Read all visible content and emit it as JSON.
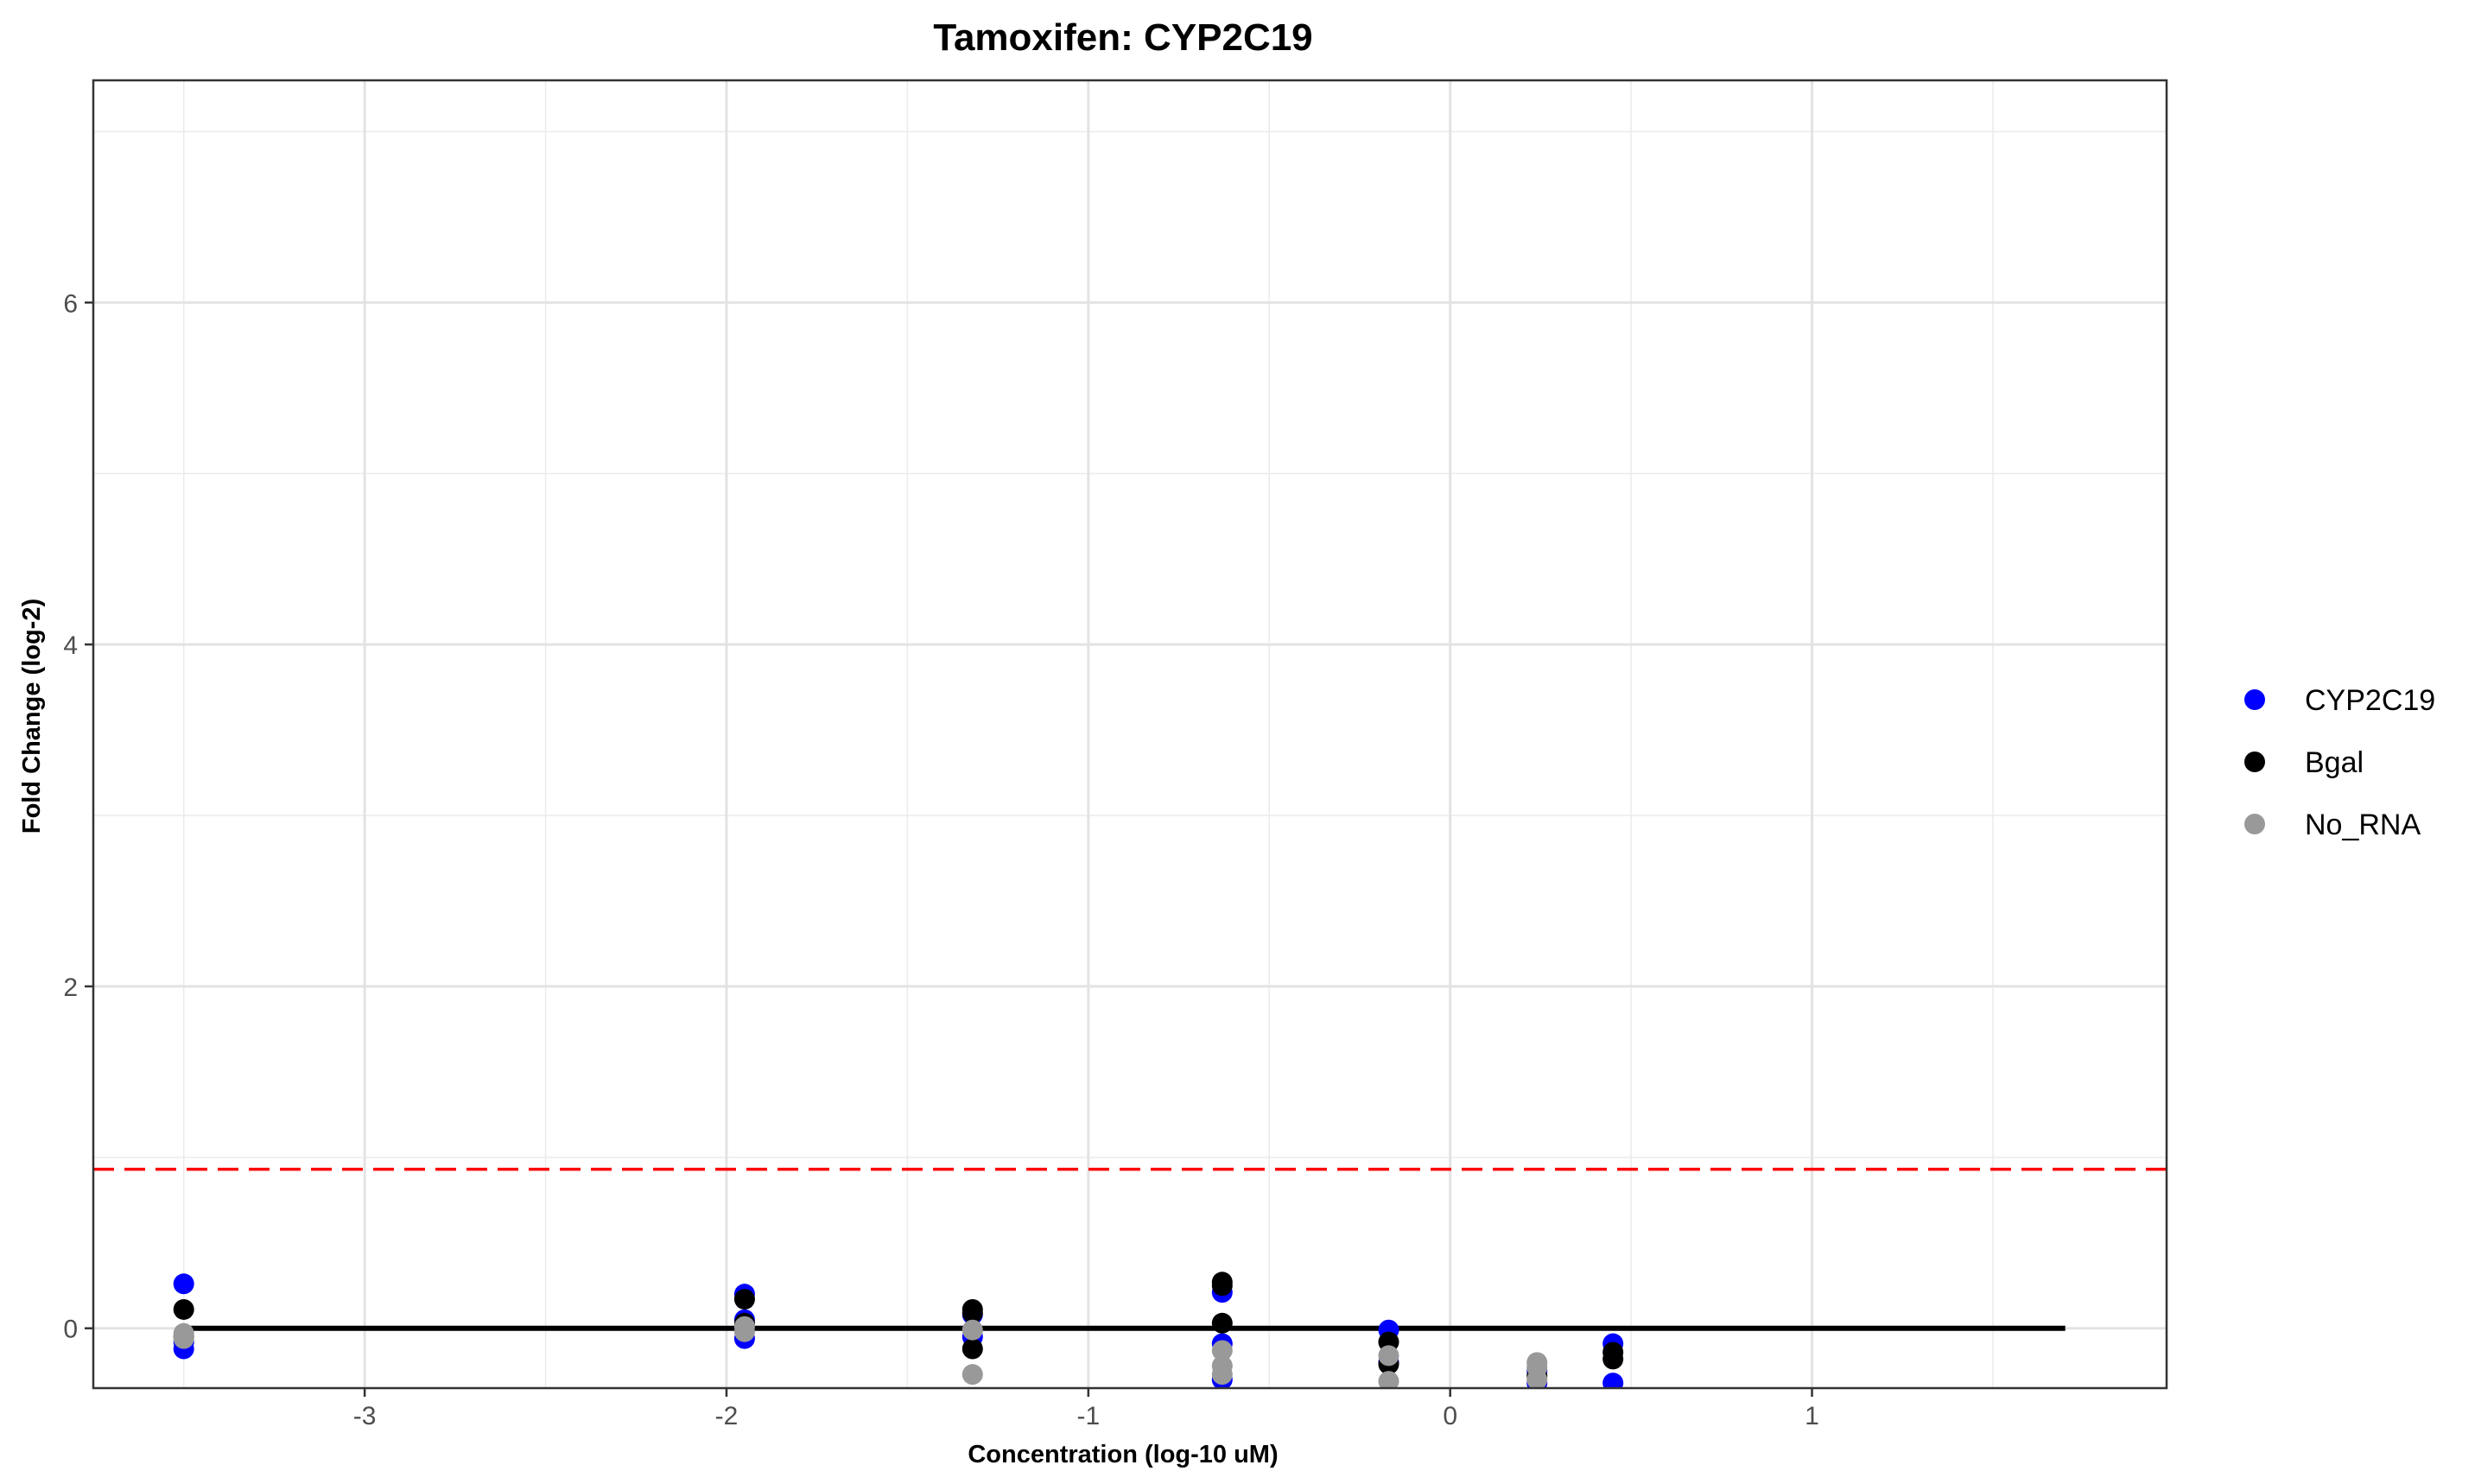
{
  "chart_data": {
    "type": "scatter",
    "title": "Tamoxifen: CYP2C19",
    "xlabel": "Concentration (log-10 uM)",
    "ylabel": "Fold Change (log-2)",
    "xlim": [
      -3.75,
      1.98
    ],
    "ylim": [
      -0.35,
      7.3
    ],
    "x_ticks": [
      -3,
      -2,
      -1,
      0,
      1
    ],
    "x_tick_labels": [
      "-3",
      "-2",
      "-1",
      "0",
      "1"
    ],
    "y_ticks": [
      0,
      2,
      4,
      6
    ],
    "y_tick_labels": [
      "0",
      "2",
      "4",
      "6"
    ],
    "grid": true,
    "legend_position": "right",
    "series": [
      {
        "name": "CYP2C19",
        "color": "#0000ff",
        "points": [
          [
            -3.5,
            0.26
          ],
          [
            -3.5,
            -0.12
          ],
          [
            -3.5,
            -0.08
          ],
          [
            -1.95,
            0.2
          ],
          [
            -1.95,
            -0.06
          ],
          [
            -1.95,
            0.05
          ],
          [
            -1.32,
            0.08
          ],
          [
            -1.32,
            -0.05
          ],
          [
            -0.63,
            0.21
          ],
          [
            -0.63,
            -0.09
          ],
          [
            -0.63,
            -0.3
          ],
          [
            -0.17,
            -0.01
          ],
          [
            -0.17,
            -0.2
          ],
          [
            0.24,
            -0.32
          ],
          [
            0.24,
            -0.25
          ],
          [
            0.45,
            -0.09
          ],
          [
            0.45,
            -0.32
          ]
        ]
      },
      {
        "name": "Bgal",
        "color": "#000000",
        "points": [
          [
            -3.5,
            0.11
          ],
          [
            -3.5,
            -0.05
          ],
          [
            -1.95,
            0.17
          ],
          [
            -1.95,
            0.03
          ],
          [
            -1.32,
            0.11
          ],
          [
            -1.32,
            0.09
          ],
          [
            -1.32,
            -0.12
          ],
          [
            -0.63,
            0.27
          ],
          [
            -0.63,
            0.25
          ],
          [
            -0.63,
            0.03
          ],
          [
            -0.17,
            -0.08
          ],
          [
            -0.17,
            -0.21
          ],
          [
            0.24,
            -0.28
          ],
          [
            0.45,
            -0.14
          ],
          [
            0.45,
            -0.18
          ]
        ]
      },
      {
        "name": "No_RNA",
        "color": "#999999",
        "points": [
          [
            -3.5,
            -0.03
          ],
          [
            -3.5,
            -0.06
          ],
          [
            -1.95,
            0.01
          ],
          [
            -1.95,
            -0.02
          ],
          [
            -1.32,
            -0.01
          ],
          [
            -1.32,
            -0.27
          ],
          [
            -0.63,
            -0.13
          ],
          [
            -0.63,
            -0.22
          ],
          [
            -0.63,
            -0.27
          ],
          [
            -0.17,
            -0.16
          ],
          [
            -0.17,
            -0.31
          ],
          [
            0.24,
            -0.2
          ],
          [
            0.24,
            -0.23
          ],
          [
            0.24,
            -0.3
          ]
        ]
      }
    ],
    "reference_lines": [
      {
        "type": "solid",
        "color": "#000000",
        "y": 0,
        "x_from": -3.5,
        "x_to": 1.7
      },
      {
        "type": "dashed",
        "color": "#ff0000",
        "y": 0.93
      }
    ]
  }
}
